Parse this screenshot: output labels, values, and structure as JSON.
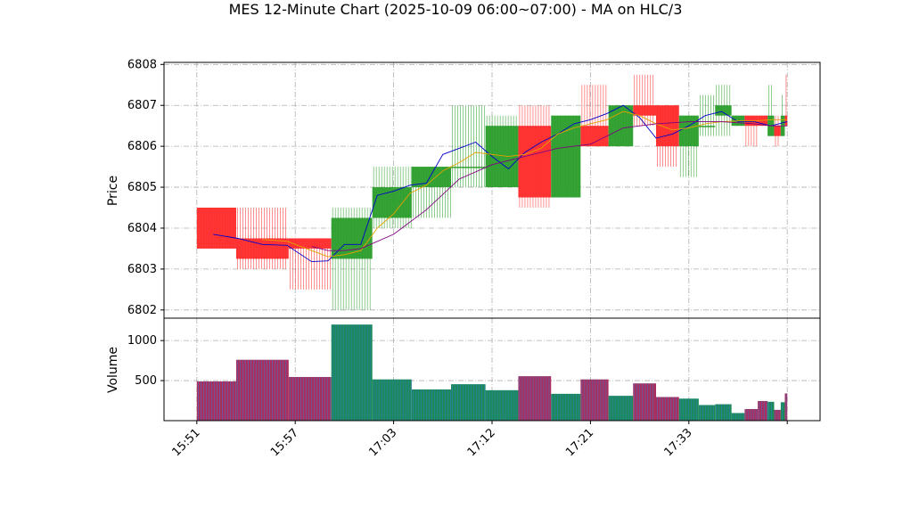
{
  "chart_data": {
    "type": "candlestick",
    "title": "MES 12-Minute Chart (2025-10-09 06:00~07:00) - MA on HLC/3",
    "price_panel": {
      "ylabel": "Price",
      "ylim": [
        6801.8,
        6808.05
      ],
      "yticks": [
        6802,
        6803,
        6804,
        6805,
        6806,
        6807,
        6808
      ],
      "grid": true
    },
    "volume_panel": {
      "ylabel": "Volume",
      "ylim": [
        0,
        1280
      ],
      "yticks": [
        500,
        1000
      ],
      "grid": true
    },
    "xaxis": {
      "xlim": [
        0,
        40
      ],
      "tick_positions": [
        2,
        8,
        14,
        20,
        26,
        32,
        38
      ],
      "tick_labels": [
        "15:51",
        "15:57",
        "17:03",
        "17:12",
        "17:21",
        "17:33",
        ""
      ]
    },
    "colors": {
      "up": "#2a9d2a",
      "down": "#ff2a2a",
      "ma1": "#0000cc",
      "ma2": "#e6a100",
      "ma3": "#800080",
      "volume_up": "#1a8a5a",
      "volume_down": "#a83060"
    },
    "bars": [
      {
        "x0": 2.0,
        "x1": 4.4,
        "open": 6804.5,
        "close": 6803.5,
        "high": 6804.5,
        "low": 6803.5,
        "volume": 490
      },
      {
        "x0": 4.4,
        "x1": 7.6,
        "open": 6803.75,
        "close": 6803.25,
        "high": 6804.5,
        "low": 6803.0,
        "volume": 760
      },
      {
        "x0": 7.6,
        "x1": 10.2,
        "open": 6803.75,
        "close": 6803.5,
        "high": 6803.75,
        "low": 6802.5,
        "volume": 545
      },
      {
        "x0": 10.2,
        "x1": 12.7,
        "open": 6803.25,
        "close": 6804.25,
        "high": 6804.5,
        "low": 6802.0,
        "volume": 1200
      },
      {
        "x0": 12.7,
        "x1": 15.1,
        "open": 6804.25,
        "close": 6805.0,
        "high": 6805.5,
        "low": 6804.0,
        "volume": 515
      },
      {
        "x0": 15.1,
        "x1": 17.5,
        "open": 6805.0,
        "close": 6805.5,
        "high": 6805.5,
        "low": 6804.25,
        "volume": 390
      },
      {
        "x0": 17.5,
        "x1": 19.6,
        "open": 6805.5,
        "close": 6805.5,
        "high": 6807.0,
        "low": 6805.0,
        "volume": 455
      },
      {
        "x0": 19.6,
        "x1": 21.6,
        "open": 6805.0,
        "close": 6806.5,
        "high": 6806.75,
        "low": 6805.0,
        "volume": 380
      },
      {
        "x0": 21.6,
        "x1": 23.6,
        "open": 6806.5,
        "close": 6804.75,
        "high": 6807.0,
        "low": 6804.5,
        "volume": 555
      },
      {
        "x0": 23.6,
        "x1": 25.4,
        "open": 6804.75,
        "close": 6806.75,
        "high": 6806.75,
        "low": 6804.75,
        "volume": 335
      },
      {
        "x0": 25.4,
        "x1": 27.1,
        "open": 6806.5,
        "close": 6806.0,
        "high": 6807.5,
        "low": 6806.0,
        "volume": 515
      },
      {
        "x0": 27.1,
        "x1": 28.6,
        "open": 6806.0,
        "close": 6807.0,
        "high": 6807.0,
        "low": 6806.0,
        "volume": 310
      },
      {
        "x0": 28.6,
        "x1": 30.0,
        "open": 6807.0,
        "close": 6806.75,
        "high": 6807.75,
        "low": 6806.5,
        "volume": 465
      },
      {
        "x0": 30.0,
        "x1": 31.4,
        "open": 6807.0,
        "close": 6806.0,
        "high": 6807.0,
        "low": 6805.5,
        "volume": 295
      },
      {
        "x0": 31.4,
        "x1": 32.6,
        "open": 6806.0,
        "close": 6806.75,
        "high": 6806.75,
        "low": 6805.25,
        "volume": 275
      },
      {
        "x0": 32.6,
        "x1": 33.6,
        "open": 6806.5,
        "close": 6806.5,
        "high": 6807.25,
        "low": 6806.25,
        "volume": 195
      },
      {
        "x0": 33.6,
        "x1": 34.6,
        "open": 6806.75,
        "close": 6807.0,
        "high": 6807.5,
        "low": 6806.25,
        "volume": 205
      },
      {
        "x0": 34.6,
        "x1": 35.4,
        "open": 6806.5,
        "close": 6806.75,
        "high": 6806.75,
        "low": 6806.5,
        "volume": 95
      },
      {
        "x0": 35.4,
        "x1": 36.2,
        "open": 6806.75,
        "close": 6806.5,
        "high": 6806.75,
        "low": 6806.0,
        "volume": 145
      },
      {
        "x0": 36.2,
        "x1": 36.8,
        "open": 6806.75,
        "close": 6806.5,
        "high": 6806.75,
        "low": 6806.5,
        "volume": 245
      },
      {
        "x0": 36.8,
        "x1": 37.2,
        "open": 6806.25,
        "close": 6806.75,
        "high": 6807.5,
        "low": 6806.25,
        "volume": 235
      },
      {
        "x0": 37.2,
        "x1": 37.6,
        "open": 6806.5,
        "close": 6806.25,
        "high": 6806.75,
        "low": 6806.0,
        "volume": 135
      },
      {
        "x0": 37.6,
        "x1": 37.85,
        "open": 6806.25,
        "close": 6806.75,
        "high": 6807.25,
        "low": 6806.25,
        "volume": 230
      },
      {
        "x0": 37.85,
        "x1": 38.0,
        "open": 6806.75,
        "close": 6806.5,
        "high": 6807.75,
        "low": 6806.5,
        "volume": 340
      }
    ],
    "ma_series": [
      {
        "color_key": "ma1",
        "x": [
          3,
          4.5,
          6,
          7.5,
          9,
          10,
          11,
          12,
          13,
          14,
          15,
          16,
          17,
          18,
          19,
          20,
          21,
          22,
          23,
          24,
          25,
          26,
          27,
          28,
          29,
          30,
          31,
          32,
          33,
          34,
          35,
          36,
          37,
          38
        ],
        "y": [
          6803.85,
          6803.75,
          6803.6,
          6803.58,
          6803.18,
          6803.2,
          6803.6,
          6803.6,
          6804.8,
          6804.9,
          6805.05,
          6805.1,
          6805.8,
          6805.95,
          6806.1,
          6805.75,
          6805.45,
          6805.85,
          6806.1,
          6806.3,
          6806.55,
          6806.65,
          6806.8,
          6807.0,
          6806.7,
          6806.2,
          6806.3,
          6806.5,
          6806.75,
          6806.85,
          6806.6,
          6806.6,
          6806.5,
          6806.6
        ]
      },
      {
        "color_key": "ma2",
        "x": [
          6,
          7.5,
          9,
          10,
          11,
          12,
          13,
          14,
          15,
          16,
          17,
          18,
          19,
          20,
          21,
          22,
          23,
          24,
          25,
          26,
          27,
          28,
          29,
          30,
          31,
          32,
          33,
          34,
          35,
          36,
          37,
          38
        ],
        "y": [
          6803.72,
          6803.68,
          6803.45,
          6803.3,
          6803.35,
          6803.45,
          6804.0,
          6804.35,
          6804.85,
          6805.05,
          6805.4,
          6805.6,
          6805.85,
          6805.8,
          6805.75,
          6805.8,
          6805.95,
          6806.3,
          6806.45,
          6806.55,
          6806.65,
          6806.85,
          6806.75,
          6806.55,
          6806.4,
          6806.45,
          6806.55,
          6806.6,
          6806.62,
          6806.62,
          6806.65,
          6806.65
        ]
      },
      {
        "color_key": "ma3",
        "x": [
          9,
          10,
          11,
          12,
          14,
          16,
          18,
          20,
          22,
          24,
          26,
          28,
          30,
          32,
          34,
          36,
          37,
          38
        ],
        "y": [
          6803.55,
          6803.45,
          6803.45,
          6803.5,
          6803.85,
          6804.45,
          6805.2,
          6805.55,
          6805.75,
          6805.95,
          6806.05,
          6806.45,
          6806.55,
          6806.6,
          6806.6,
          6806.55,
          6806.5,
          6806.5
        ]
      }
    ]
  }
}
